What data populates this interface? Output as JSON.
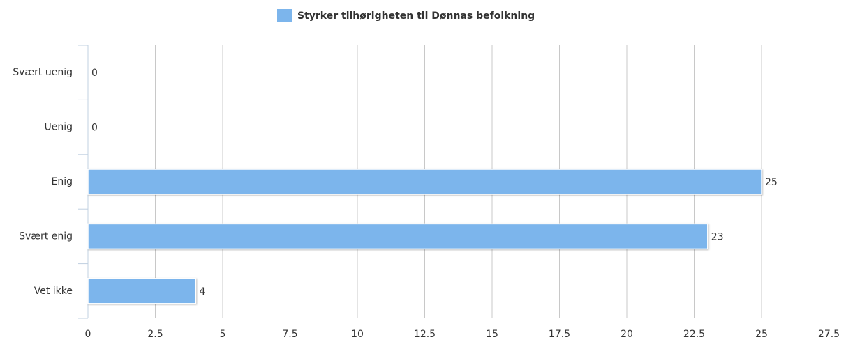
{
  "chart_data": {
    "type": "bar",
    "categories": [
      "Svært uenig",
      "Uenig",
      "Enig",
      "Svært enig",
      "Vet ikke"
    ],
    "series": [
      {
        "name": "Styrker tilhørigheten til Dønnas befolkning",
        "color": "#7cb5ec",
        "values": [
          0,
          0,
          25,
          23,
          4
        ]
      }
    ],
    "xlim": [
      0,
      27.5
    ],
    "xticks": [
      0,
      2.5,
      5,
      7.5,
      10,
      12.5,
      15,
      17.5,
      20,
      22.5,
      25,
      27.5
    ],
    "grid": true,
    "legend": "top"
  }
}
